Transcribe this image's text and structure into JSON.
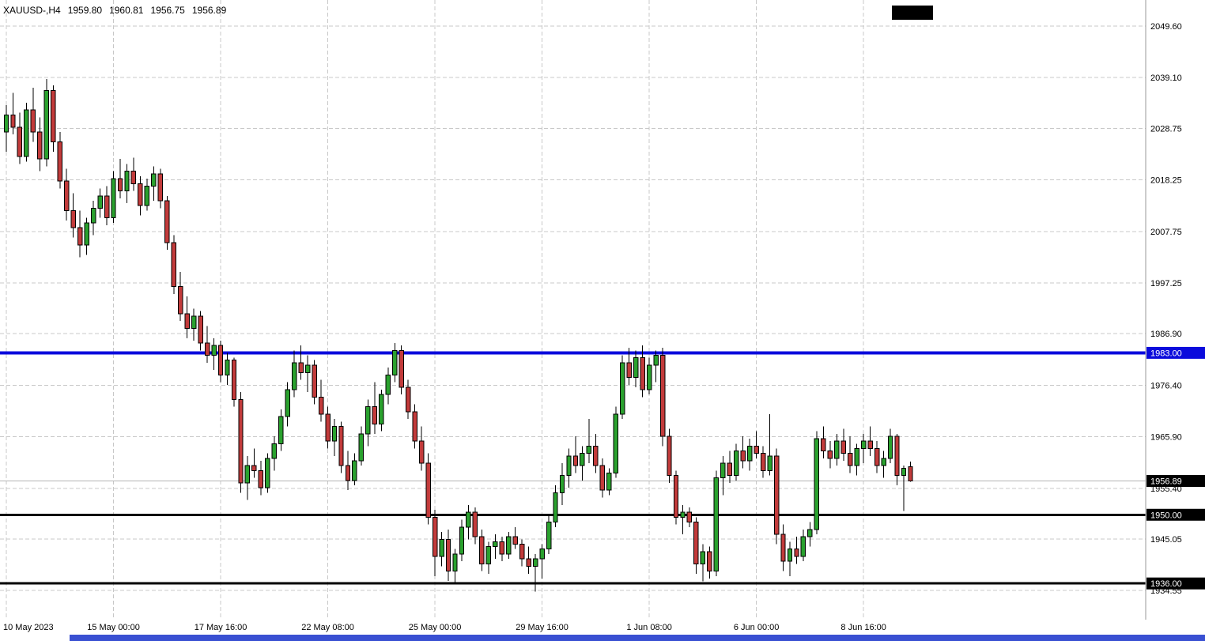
{
  "info_bar": {
    "symbol_period": "XAUUSD-,H4",
    "open": "1959.80",
    "high": "1960.81",
    "low": "1956.75",
    "close": "1956.89"
  },
  "colors": {
    "background": "#ffffff",
    "grid": "#c8c8c8",
    "bull": "#2aa12e",
    "bear": "#c23b3b",
    "outline": "#000000",
    "axis_text": "#000000",
    "axis_border": "#9a9a9a",
    "label_text": "#ffffff",
    "bid_line": "#b5b5b5",
    "level_blue": "#0b0bdc",
    "level_black": "#000000",
    "scrollbar_thumb": "#3950d2",
    "corner_badge": "#000000"
  },
  "chart_data": {
    "type": "candlestick",
    "title": "XAUUSD-,H4",
    "symbol": "XAUUSD",
    "timeframe": "H4",
    "grid": true,
    "ylim": [
      1928.6,
      2054.9
    ],
    "ohlc_current": {
      "open": 1959.8,
      "high": 1960.81,
      "low": 1956.75,
      "close": 1956.89
    },
    "price_axis_ticks": [
      "2049.60",
      "2039.10",
      "2028.75",
      "2018.25",
      "2007.75",
      "1997.25",
      "1986.90",
      "1976.40",
      "1965.90",
      "1955.40",
      "1945.05",
      "1934.55"
    ],
    "time_axis_ticks": [
      {
        "label": "10 May 2023",
        "bar": 0
      },
      {
        "label": "15 May 00:00",
        "bar": 16
      },
      {
        "label": "17 May 16:00",
        "bar": 32
      },
      {
        "label": "22 May 08:00",
        "bar": 48
      },
      {
        "label": "25 May 00:00",
        "bar": 64
      },
      {
        "label": "29 May 16:00",
        "bar": 80
      },
      {
        "label": "1 Jun 08:00",
        "bar": 96
      },
      {
        "label": "6 Jun 00:00",
        "bar": 112
      },
      {
        "label": "8 Jun 16:00",
        "bar": 128
      }
    ],
    "level_lines": [
      {
        "price": 1983.0,
        "label": "1983.00",
        "color": "#0b0bdc",
        "width": 4
      },
      {
        "price": 1950.0,
        "label": "1950.00",
        "color": "#000000",
        "width": 3
      },
      {
        "price": 1936.0,
        "label": "1936.00",
        "color": "#000000",
        "width": 3
      }
    ],
    "bid": {
      "price": 1956.89,
      "label": "1956.89",
      "line_color": "#b5b5b5",
      "label_bg": "#000000"
    },
    "candles": [
      [
        2028.0,
        2033.5,
        2024.0,
        2031.5
      ],
      [
        2031.5,
        2036.0,
        2027.5,
        2029.0
      ],
      [
        2029.0,
        2032.0,
        2021.5,
        2023.0
      ],
      [
        2023.0,
        2034.0,
        2022.0,
        2032.5
      ],
      [
        2032.5,
        2037.0,
        2026.0,
        2028.0
      ],
      [
        2028.0,
        2031.0,
        2020.0,
        2022.5
      ],
      [
        2022.5,
        2038.8,
        2021.0,
        2036.5
      ],
      [
        2036.5,
        2037.5,
        2024.0,
        2026.0
      ],
      [
        2026.0,
        2028.0,
        2016.5,
        2018.0
      ],
      [
        2018.0,
        2020.5,
        2010.0,
        2012.0
      ],
      [
        2012.0,
        2015.5,
        2006.5,
        2008.5
      ],
      [
        2008.5,
        2012.0,
        2002.5,
        2005.0
      ],
      [
        2005.0,
        2010.5,
        2003.0,
        2009.5
      ],
      [
        2009.5,
        2014.0,
        2007.0,
        2012.5
      ],
      [
        2012.5,
        2016.5,
        2010.5,
        2015.0
      ],
      [
        2015.0,
        2017.0,
        2009.0,
        2010.5
      ],
      [
        2010.5,
        2020.0,
        2009.5,
        2018.5
      ],
      [
        2018.5,
        2022.5,
        2014.5,
        2016.0
      ],
      [
        2016.0,
        2021.5,
        2013.5,
        2020.0
      ],
      [
        2020.0,
        2022.8,
        2016.0,
        2017.5
      ],
      [
        2017.5,
        2019.0,
        2011.0,
        2013.0
      ],
      [
        2013.0,
        2018.5,
        2012.0,
        2017.0
      ],
      [
        2017.0,
        2021.0,
        2014.0,
        2019.5
      ],
      [
        2019.5,
        2020.5,
        2012.5,
        2014.0
      ],
      [
        2014.0,
        2015.0,
        2004.0,
        2005.5
      ],
      [
        2005.5,
        2007.0,
        1995.0,
        1996.5
      ],
      [
        1996.5,
        1999.5,
        1989.5,
        1991.0
      ],
      [
        1991.0,
        1994.5,
        1986.0,
        1988.0
      ],
      [
        1988.0,
        1992.0,
        1985.5,
        1990.5
      ],
      [
        1990.5,
        1991.5,
        1983.5,
        1985.0
      ],
      [
        1985.0,
        1988.5,
        1981.0,
        1982.5
      ],
      [
        1982.5,
        1986.0,
        1979.5,
        1984.5
      ],
      [
        1984.5,
        1985.5,
        1977.0,
        1978.5
      ],
      [
        1978.5,
        1983.0,
        1976.5,
        1981.5
      ],
      [
        1981.5,
        1982.0,
        1972.0,
        1973.5
      ],
      [
        1973.5,
        1975.0,
        1954.5,
        1956.5
      ],
      [
        1956.5,
        1962.0,
        1953.0,
        1960.0
      ],
      [
        1960.0,
        1963.5,
        1957.5,
        1959.0
      ],
      [
        1959.0,
        1961.0,
        1954.0,
        1955.5
      ],
      [
        1955.5,
        1962.5,
        1954.5,
        1961.5
      ],
      [
        1961.5,
        1966.0,
        1959.0,
        1964.5
      ],
      [
        1964.5,
        1971.5,
        1963.0,
        1970.0
      ],
      [
        1970.0,
        1977.0,
        1968.0,
        1975.5
      ],
      [
        1975.5,
        1983.5,
        1974.0,
        1981.0
      ],
      [
        1981.0,
        1984.5,
        1977.5,
        1979.0
      ],
      [
        1979.0,
        1982.5,
        1975.0,
        1980.5
      ],
      [
        1980.5,
        1981.5,
        1972.5,
        1974.0
      ],
      [
        1974.0,
        1977.5,
        1969.0,
        1970.5
      ],
      [
        1970.5,
        1972.0,
        1963.5,
        1965.0
      ],
      [
        1965.0,
        1969.5,
        1962.0,
        1968.0
      ],
      [
        1968.0,
        1969.0,
        1958.5,
        1960.0
      ],
      [
        1960.0,
        1963.0,
        1955.0,
        1957.0
      ],
      [
        1957.0,
        1962.5,
        1956.0,
        1961.0
      ],
      [
        1961.0,
        1968.0,
        1960.0,
        1966.5
      ],
      [
        1966.5,
        1973.5,
        1964.0,
        1972.0
      ],
      [
        1972.0,
        1977.0,
        1966.5,
        1968.5
      ],
      [
        1968.5,
        1975.5,
        1967.0,
        1974.5
      ],
      [
        1974.5,
        1980.0,
        1972.5,
        1978.5
      ],
      [
        1978.5,
        1985.0,
        1977.0,
        1983.5
      ],
      [
        1983.5,
        1984.5,
        1974.5,
        1976.0
      ],
      [
        1976.0,
        1977.5,
        1969.5,
        1971.0
      ],
      [
        1971.0,
        1972.5,
        1963.5,
        1965.0
      ],
      [
        1965.0,
        1968.0,
        1959.0,
        1960.5
      ],
      [
        1960.5,
        1962.5,
        1948.0,
        1949.5
      ],
      [
        1949.5,
        1951.0,
        1937.5,
        1941.5
      ],
      [
        1941.5,
        1946.5,
        1939.5,
        1945.0
      ],
      [
        1945.0,
        1947.0,
        1936.5,
        1938.5
      ],
      [
        1938.5,
        1943.0,
        1936.0,
        1942.0
      ],
      [
        1942.0,
        1949.0,
        1940.5,
        1947.5
      ],
      [
        1947.5,
        1952.0,
        1945.0,
        1950.5
      ],
      [
        1950.5,
        1951.5,
        1944.0,
        1945.5
      ],
      [
        1945.5,
        1947.0,
        1938.5,
        1940.0
      ],
      [
        1940.0,
        1944.5,
        1938.0,
        1943.5
      ],
      [
        1943.5,
        1946.0,
        1941.0,
        1944.5
      ],
      [
        1944.5,
        1945.5,
        1940.5,
        1942.0
      ],
      [
        1942.0,
        1946.5,
        1941.0,
        1945.5
      ],
      [
        1945.5,
        1947.5,
        1943.0,
        1944.0
      ],
      [
        1944.0,
        1945.0,
        1939.5,
        1941.0
      ],
      [
        1941.0,
        1943.5,
        1938.0,
        1939.5
      ],
      [
        1939.5,
        1942.0,
        1934.3,
        1941.0
      ],
      [
        1941.0,
        1944.0,
        1937.0,
        1943.0
      ],
      [
        1943.0,
        1950.0,
        1942.0,
        1948.5
      ],
      [
        1948.5,
        1956.0,
        1947.5,
        1954.5
      ],
      [
        1954.5,
        1960.5,
        1952.0,
        1958.0
      ],
      [
        1958.0,
        1963.5,
        1955.5,
        1962.0
      ],
      [
        1962.0,
        1966.0,
        1958.5,
        1960.0
      ],
      [
        1960.0,
        1964.0,
        1957.0,
        1962.5
      ],
      [
        1962.5,
        1969.5,
        1960.5,
        1964.0
      ],
      [
        1964.0,
        1966.5,
        1958.5,
        1960.0
      ],
      [
        1960.0,
        1961.5,
        1953.5,
        1955.0
      ],
      [
        1955.0,
        1959.5,
        1954.0,
        1958.5
      ],
      [
        1958.5,
        1972.0,
        1957.5,
        1970.5
      ],
      [
        1970.5,
        1982.5,
        1969.5,
        1981.0
      ],
      [
        1981.0,
        1984.0,
        1976.5,
        1978.0
      ],
      [
        1978.0,
        1983.5,
        1976.0,
        1982.0
      ],
      [
        1982.0,
        1984.5,
        1974.0,
        1975.5
      ],
      [
        1975.5,
        1982.0,
        1974.5,
        1980.5
      ],
      [
        1980.5,
        1983.5,
        1977.0,
        1982.5
      ],
      [
        1982.5,
        1984.0,
        1964.0,
        1966.0
      ],
      [
        1966.0,
        1967.5,
        1956.5,
        1958.0
      ],
      [
        1958.0,
        1959.0,
        1948.0,
        1949.5
      ],
      [
        1949.5,
        1952.0,
        1946.0,
        1950.5
      ],
      [
        1950.5,
        1951.5,
        1947.5,
        1948.5
      ],
      [
        1948.5,
        1949.5,
        1938.0,
        1940.0
      ],
      [
        1940.0,
        1944.0,
        1936.4,
        1942.5
      ],
      [
        1942.5,
        1943.5,
        1937.0,
        1938.5
      ],
      [
        1938.5,
        1959.0,
        1937.5,
        1957.5
      ],
      [
        1957.5,
        1962.0,
        1954.0,
        1960.5
      ],
      [
        1960.5,
        1963.0,
        1956.5,
        1958.0
      ],
      [
        1958.0,
        1964.5,
        1957.0,
        1963.0
      ],
      [
        1963.0,
        1966.0,
        1959.5,
        1961.0
      ],
      [
        1961.0,
        1965.5,
        1959.0,
        1964.0
      ],
      [
        1964.0,
        1967.0,
        1961.5,
        1962.5
      ],
      [
        1962.5,
        1964.0,
        1957.5,
        1959.0
      ],
      [
        1959.0,
        1970.5,
        1958.0,
        1962.0
      ],
      [
        1962.0,
        1963.5,
        1944.0,
        1946.0
      ],
      [
        1946.0,
        1948.0,
        1938.5,
        1940.5
      ],
      [
        1940.5,
        1944.5,
        1937.5,
        1943.0
      ],
      [
        1943.0,
        1945.5,
        1940.0,
        1941.5
      ],
      [
        1941.5,
        1947.0,
        1940.5,
        1945.5
      ],
      [
        1945.5,
        1948.5,
        1943.5,
        1947.0
      ],
      [
        1947.0,
        1967.0,
        1946.0,
        1965.5
      ],
      [
        1965.5,
        1968.0,
        1961.5,
        1963.0
      ],
      [
        1963.0,
        1965.0,
        1959.5,
        1961.5
      ],
      [
        1961.5,
        1966.5,
        1960.0,
        1965.0
      ],
      [
        1965.0,
        1967.5,
        1961.0,
        1962.5
      ],
      [
        1962.5,
        1966.0,
        1958.5,
        1960.0
      ],
      [
        1960.0,
        1964.5,
        1958.0,
        1963.5
      ],
      [
        1963.5,
        1966.5,
        1960.5,
        1965.0
      ],
      [
        1965.0,
        1968.0,
        1962.0,
        1963.5
      ],
      [
        1963.5,
        1965.0,
        1958.5,
        1960.0
      ],
      [
        1960.0,
        1963.0,
        1957.5,
        1961.5
      ],
      [
        1961.5,
        1967.5,
        1960.5,
        1966.0
      ],
      [
        1966.0,
        1966.5,
        1956.0,
        1958.0
      ],
      [
        1958.0,
        1960.0,
        1950.8,
        1959.5
      ],
      [
        1959.8,
        1960.81,
        1956.75,
        1956.89
      ]
    ]
  }
}
